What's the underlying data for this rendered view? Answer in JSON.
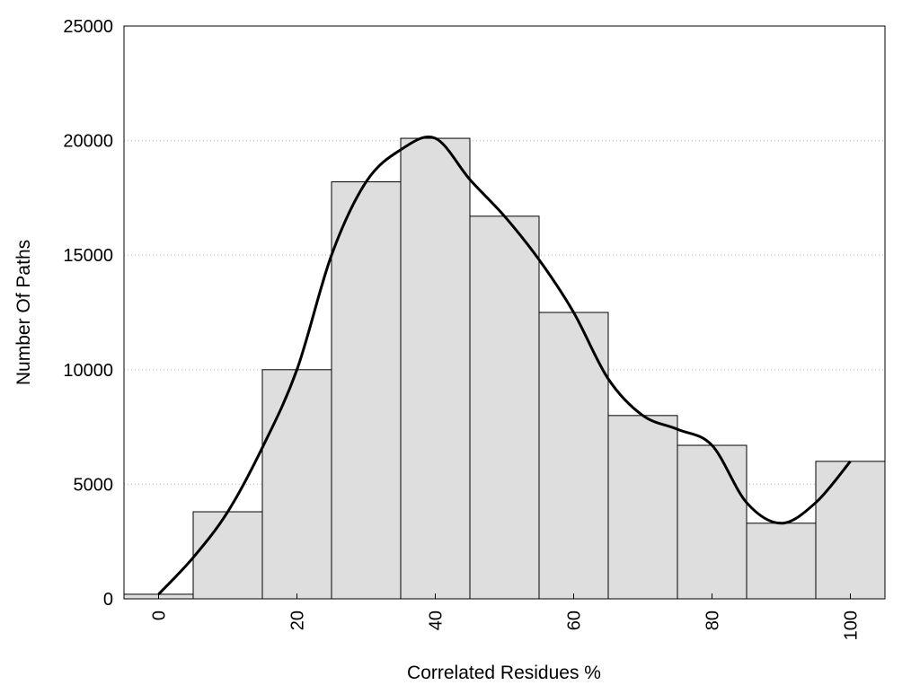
{
  "chart_data": {
    "type": "bar",
    "title": "",
    "xlabel": "Correlated Residues %",
    "ylabel": "Number Of Paths",
    "xlim": [
      -5,
      105
    ],
    "ylim": [
      0,
      25000
    ],
    "bin_width": 10,
    "grid": "horizontal-dotted",
    "x_ticks": [
      0,
      20,
      40,
      60,
      80,
      100
    ],
    "x_tick_labels": [
      "0",
      "20",
      "40",
      "60",
      "80",
      "100"
    ],
    "x_tick_rotation": "vertical",
    "y_ticks": [
      0,
      5000,
      10000,
      15000,
      20000,
      25000
    ],
    "y_tick_labels": [
      "0",
      "5000",
      "10000",
      "15000",
      "20000",
      "25000"
    ],
    "bins": [
      {
        "x": 0,
        "value": 200
      },
      {
        "x": 10,
        "value": 3800
      },
      {
        "x": 20,
        "value": 10000
      },
      {
        "x": 30,
        "value": 18200
      },
      {
        "x": 40,
        "value": 20100
      },
      {
        "x": 50,
        "value": 16700
      },
      {
        "x": 60,
        "value": 12500
      },
      {
        "x": 70,
        "value": 8000
      },
      {
        "x": 80,
        "value": 6700
      },
      {
        "x": 90,
        "value": 3300
      },
      {
        "x": 100,
        "value": 6000
      }
    ],
    "bar_fill": "#dedede",
    "bar_stroke": "#000000",
    "curve": {
      "type": "line",
      "smooth": true,
      "color": "#000000",
      "points": [
        [
          0,
          200
        ],
        [
          5,
          1800
        ],
        [
          10,
          3800
        ],
        [
          15,
          6600
        ],
        [
          20,
          10000
        ],
        [
          25,
          15000
        ],
        [
          30,
          18200
        ],
        [
          35,
          19600
        ],
        [
          40,
          20100
        ],
        [
          45,
          18300
        ],
        [
          50,
          16700
        ],
        [
          55,
          14800
        ],
        [
          60,
          12500
        ],
        [
          65,
          9600
        ],
        [
          70,
          8000
        ],
        [
          75,
          7400
        ],
        [
          80,
          6700
        ],
        [
          85,
          4200
        ],
        [
          90,
          3300
        ],
        [
          95,
          4200
        ],
        [
          100,
          6000
        ]
      ]
    }
  }
}
